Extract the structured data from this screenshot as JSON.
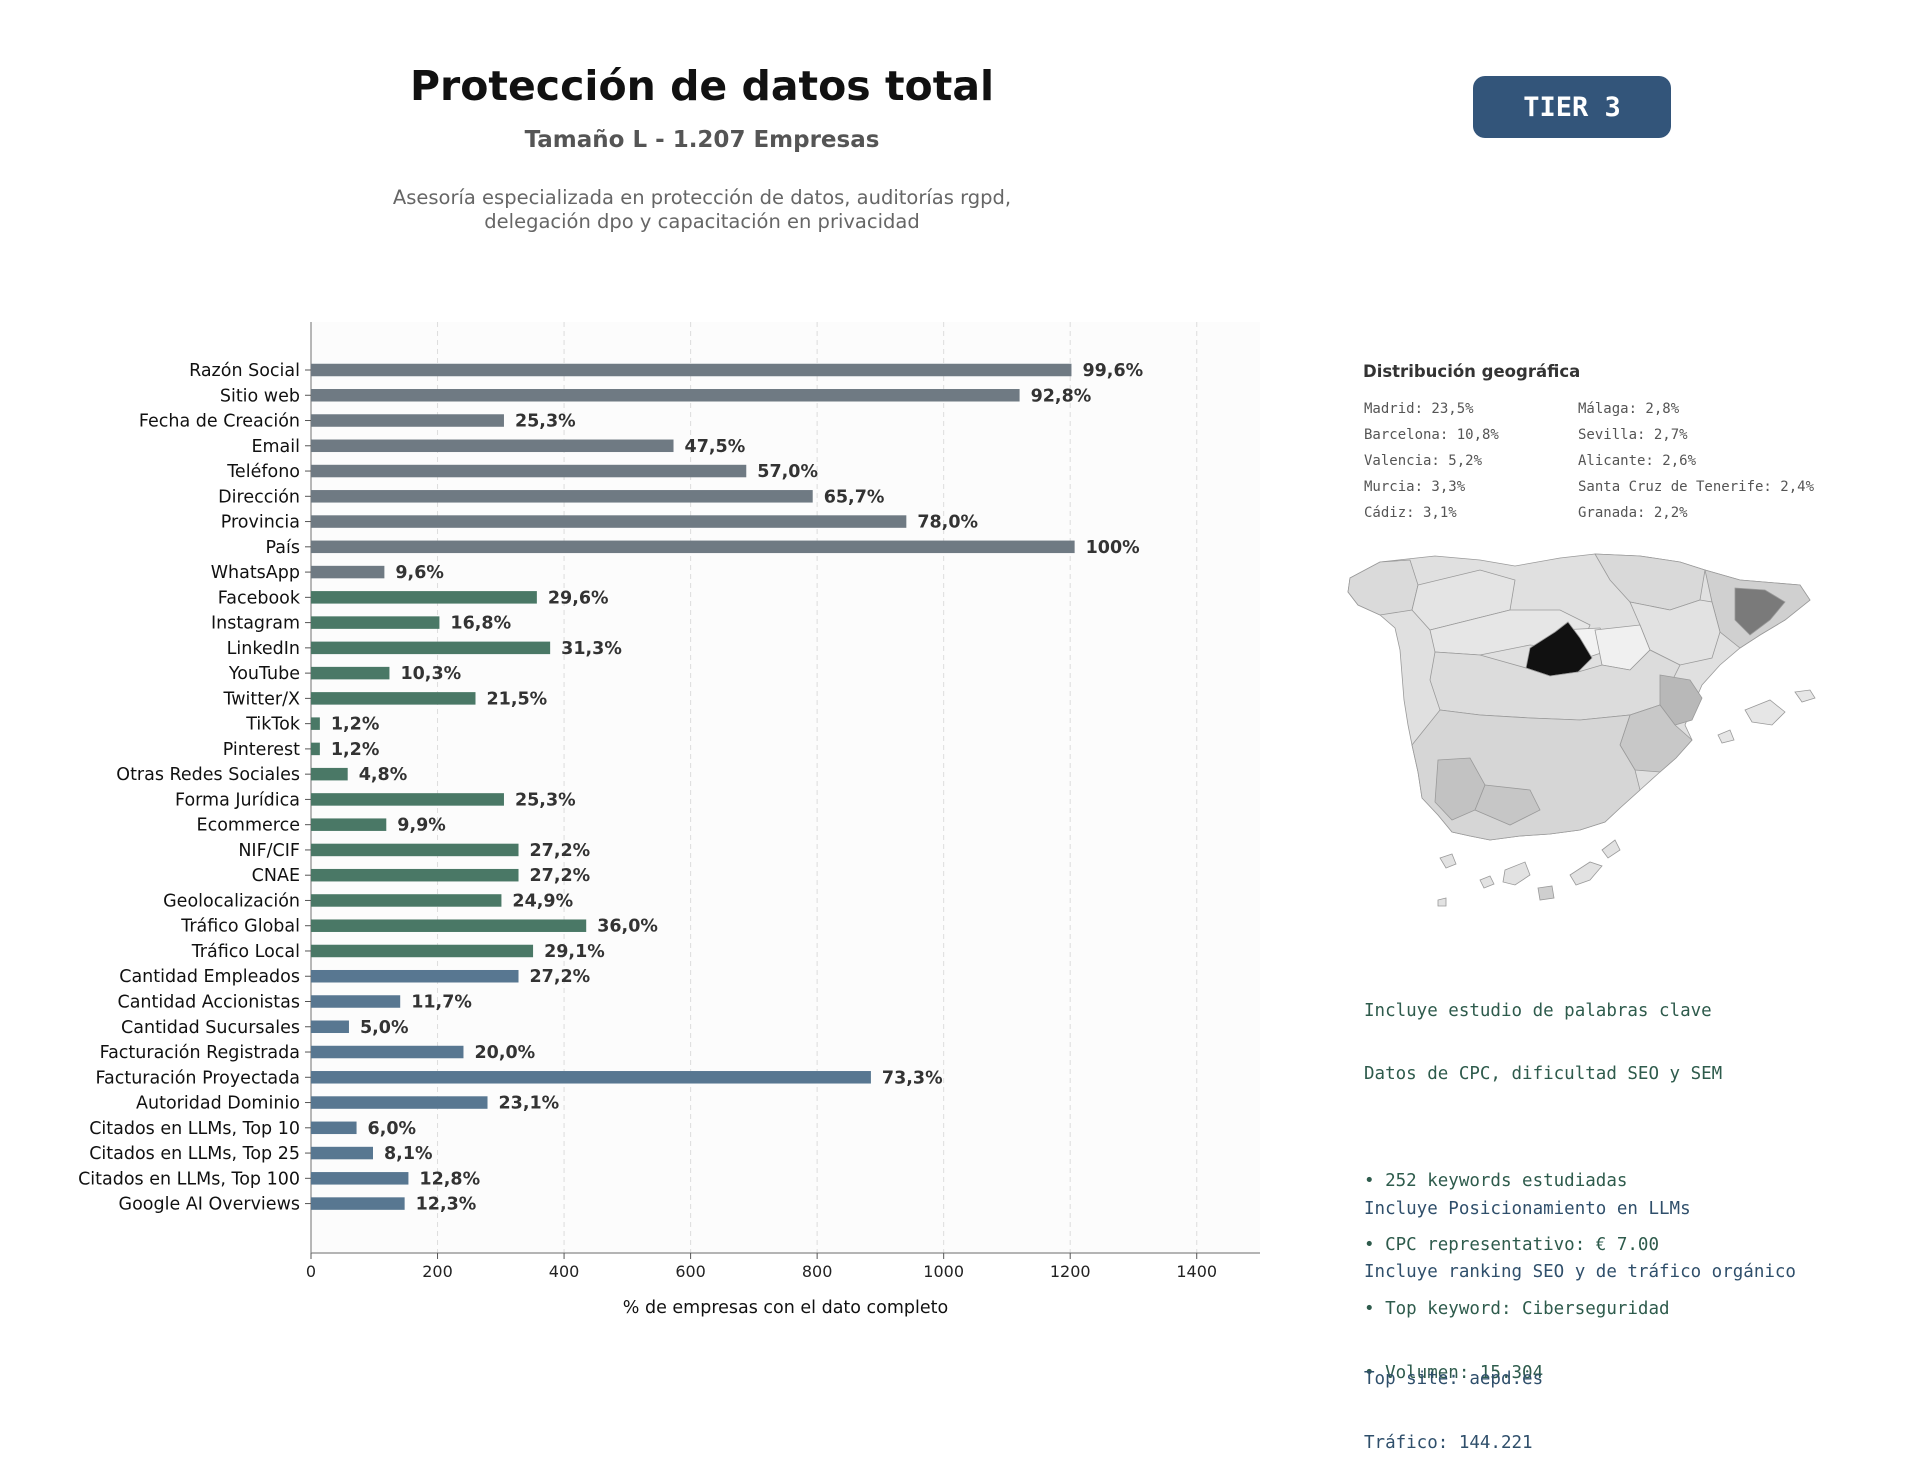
{
  "header": {
    "title": "Protección de datos total",
    "subtitle": "Tamaño L - 1.207 Empresas",
    "description_lines": [
      "Asesoría especializada en protección de datos, auditorías rgpd,",
      "delegación dpo y capacitación en privacidad"
    ],
    "tier_badge": "TIER 3"
  },
  "chart_data": {
    "type": "bar",
    "orientation": "horizontal",
    "xlabel": "% de empresas con el dato completo",
    "xlim": [
      0,
      1500
    ],
    "xticks": [
      0,
      200,
      400,
      600,
      800,
      1000,
      1200,
      1400
    ],
    "grid": "vertical dashed",
    "categories": [
      "Razón Social",
      "Sitio web",
      "Fecha de Creación",
      "Email",
      "Teléfono",
      "Dirección",
      "Provincia",
      "País",
      "WhatsApp",
      "Facebook",
      "Instagram",
      "LinkedIn",
      "YouTube",
      "Twitter/X",
      "TikTok",
      "Pinterest",
      "Otras Redes Sociales",
      "Forma Jurídica",
      "Ecommerce",
      "NIF/CIF",
      "CNAE",
      "Geolocalización",
      "Tráfico Global",
      "Tráfico Local",
      "Cantidad Empleados",
      "Cantidad Accionistas",
      "Cantidad Sucursales",
      "Facturación Registrada",
      "Facturación Proyectada",
      "Autoridad Dominio",
      "Citados en LLMs, Top 10",
      "Citados en LLMs, Top 25",
      "Citados en LLMs, Top 100",
      "Google AI Overviews"
    ],
    "values": [
      1202,
      1120,
      305,
      573,
      688,
      793,
      941,
      1207,
      116,
      357,
      203,
      378,
      124,
      260,
      14,
      14,
      58,
      305,
      119,
      328,
      328,
      301,
      435,
      351,
      328,
      141,
      60,
      241,
      885,
      279,
      72,
      98,
      154,
      148
    ],
    "value_labels": [
      "99,6%",
      "92,8%",
      "25,3%",
      "47,5%",
      "57,0%",
      "65,7%",
      "78,0%",
      "100%",
      "9,6%",
      "29,6%",
      "16,8%",
      "31,3%",
      "10,3%",
      "21,5%",
      "1,2%",
      "1,2%",
      "4,8%",
      "25,3%",
      "9,9%",
      "27,2%",
      "27,2%",
      "24,9%",
      "36,0%",
      "29,1%",
      "27,2%",
      "11,7%",
      "5,0%",
      "20,0%",
      "73,3%",
      "23,1%",
      "6,0%",
      "8,1%",
      "12,8%",
      "12,3%"
    ],
    "bar_colors": [
      "#6f7a83",
      "#6f7a83",
      "#6f7a83",
      "#6f7a83",
      "#6f7a83",
      "#6f7a83",
      "#6f7a83",
      "#6f7a83",
      "#6f7a83",
      "#4a7866",
      "#4a7866",
      "#4a7866",
      "#4a7866",
      "#4a7866",
      "#4a7866",
      "#4a7866",
      "#4a7866",
      "#4a7866",
      "#4a7866",
      "#4a7866",
      "#4a7866",
      "#4a7866",
      "#4a7866",
      "#4a7866",
      "#587791",
      "#587791",
      "#587791",
      "#587791",
      "#587791",
      "#587791",
      "#587791",
      "#587791",
      "#587791",
      "#587791"
    ]
  },
  "geo": {
    "title": "Distribución geográfica",
    "left": [
      "Madrid: 23,5%",
      "Barcelona: 10,8%",
      "Valencia: 5,2%",
      "Murcia: 3,3%",
      "Cádiz: 3,1%"
    ],
    "right": [
      "Málaga: 2,8%",
      "Sevilla: 2,7%",
      "Alicante: 2,6%",
      "Santa Cruz de Tenerife: 2,4%",
      "Granada: 2,2%"
    ]
  },
  "keywords_block": {
    "lines": [
      "Incluye estudio de palabras clave",
      "Datos de CPC, dificultad SEO y SEM",
      "",
      "• 252 keywords estudiadas",
      "• CPC representativo: € 7.00",
      "• Top keyword: Ciberseguridad",
      "• Volumen: 15.304"
    ]
  },
  "llm_block": {
    "lines": [
      "Incluye Posicionamiento en LLMs",
      "Incluye ranking SEO y de tráfico orgánico",
      "",
      "Top site: aepd.es",
      "Tráfico: 144.221"
    ]
  }
}
